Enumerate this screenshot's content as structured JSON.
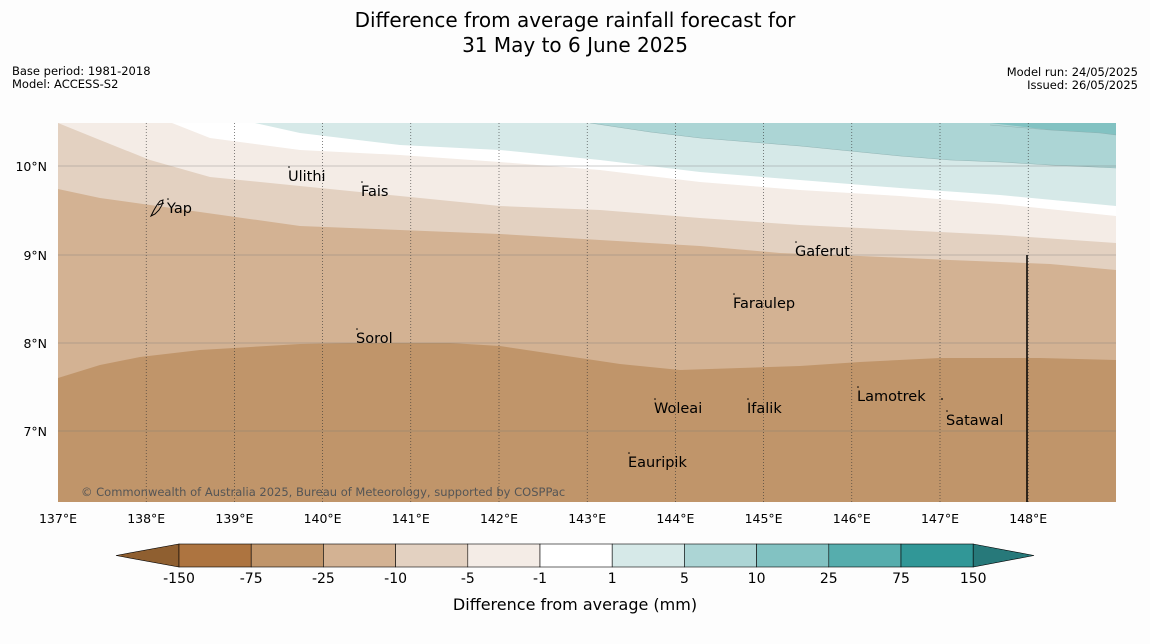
{
  "header": {
    "title_line1": "Difference from average rainfall forecast for",
    "title_line2": "31 May to 6 June 2025",
    "base_period": "Base period: 1981-2018",
    "model": "Model: ACCESS-S2",
    "model_run": "Model run: 24/05/2025",
    "issued": "Issued: 26/05/2025"
  },
  "map": {
    "copyright": "© Commonwealth of Australia 2025, Bureau of Meteorology, supported by COSPPac",
    "lon_labels": [
      "137°E",
      "138°E",
      "139°E",
      "140°E",
      "141°E",
      "142°E",
      "143°E",
      "144°E",
      "145°E",
      "146°E",
      "147°E",
      "148°E"
    ],
    "lat_labels": [
      "10°N",
      "9°N",
      "8°N",
      "7°N"
    ],
    "places": [
      "Ulithi",
      "Fais",
      "Yap",
      "Gaferut",
      "Faraulep",
      "Sorol",
      "Woleai",
      "Ifalik",
      "Lamotrek",
      "Satawal",
      "Eauripik"
    ]
  },
  "colorbar": {
    "title": "Difference from average (mm)",
    "tick_labels": [
      "-150",
      "-75",
      "-25",
      "-10",
      "-5",
      "-1",
      "1",
      "5",
      "10",
      "25",
      "75",
      "150"
    ],
    "colors": {
      "extend_low": "#8f5f30",
      "neg150_neg75": "#ad7440",
      "neg75_neg25": "#c0956a",
      "neg25_neg10": "#d3b293",
      "neg10_neg5": "#e3d1c1",
      "neg5_neg1": "#f4ece6",
      "neg1_1": "#ffffff",
      "pos1_5": "#d6e9e8",
      "pos5_10": "#acd5d5",
      "pos10_25": "#82c2c2",
      "pos25_75": "#56adad",
      "pos75_150": "#319797",
      "extend_high": "#27797a"
    }
  }
}
